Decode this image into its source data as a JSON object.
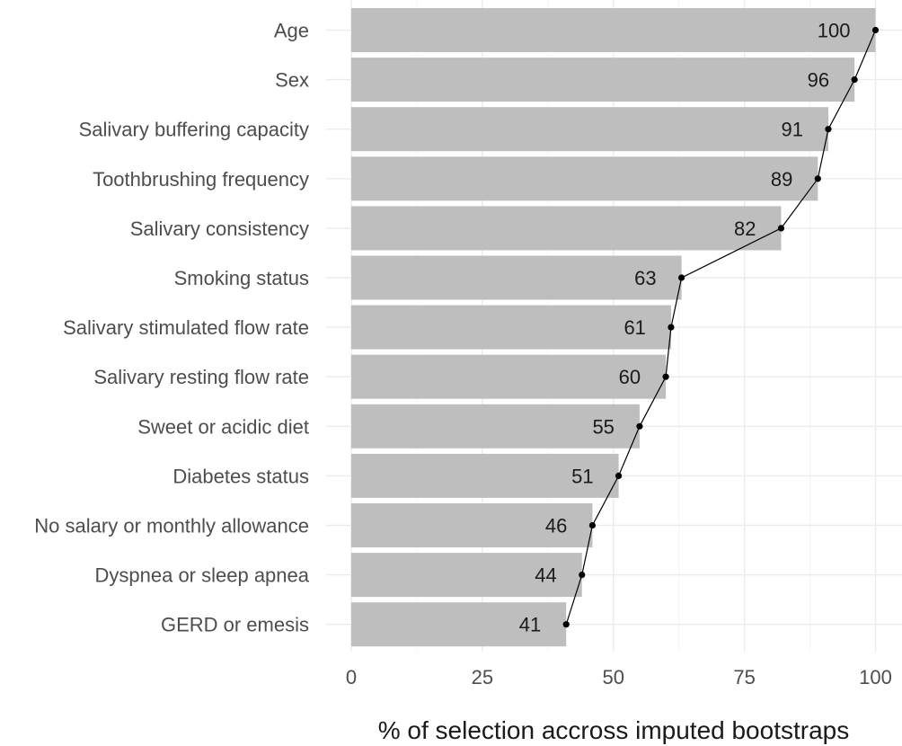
{
  "chart_data": {
    "type": "bar",
    "orientation": "horizontal",
    "categories": [
      "Age",
      "Sex",
      "Salivary buffering capacity",
      "Toothbrushing frequency",
      "Salivary consistency",
      "Smoking status",
      "Salivary stimulated flow rate",
      "Salivary resting flow rate",
      "Sweet or acidic diet",
      "Diabetes status",
      "No salary or monthly allowance",
      "Dyspnea or sleep apnea",
      "GERD or emesis"
    ],
    "values": [
      100,
      96,
      91,
      89,
      82,
      63,
      61,
      60,
      55,
      51,
      46,
      44,
      41
    ],
    "data_labels": [
      "100",
      "96",
      "91",
      "89",
      "82",
      "63",
      "61",
      "60",
      "55",
      "51",
      "46",
      "44",
      "41"
    ],
    "overlay": "line with points through bar ends",
    "xlabel": "% of selection accross imputed bootstraps",
    "ylabel": "",
    "xlim": [
      0,
      100
    ],
    "x_ticks": [
      "0",
      "25",
      "50",
      "75",
      "100"
    ],
    "grid": true,
    "colors": {
      "bar": "#bebebe",
      "line": "#000000",
      "grid": "#ebebeb"
    }
  }
}
